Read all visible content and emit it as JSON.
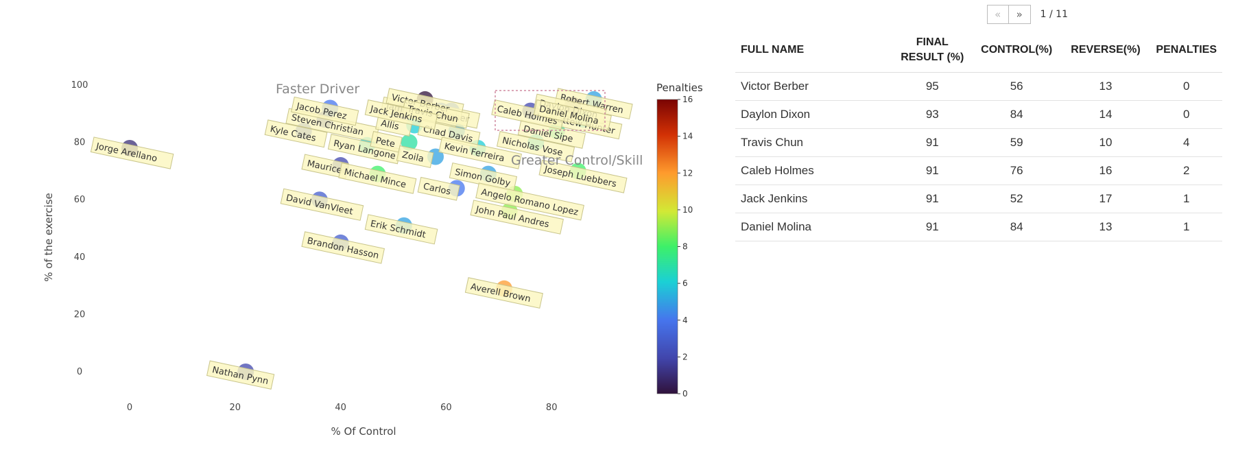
{
  "chart_data": {
    "type": "scatter",
    "xlabel": "% Of Control",
    "ylabel": "% of the exercise",
    "xlim": [
      -22,
      105
    ],
    "ylim": [
      -12,
      105
    ],
    "xticks": [
      0,
      20,
      40,
      60,
      80
    ],
    "yticks": [
      0,
      20,
      40,
      60,
      80,
      100
    ],
    "quadrant_labels": [
      "Faster Driver",
      "Greater Control/Skill"
    ],
    "colorbar": {
      "title": "Penalties",
      "min": 0,
      "max": 16,
      "ticks": [
        0,
        2,
        4,
        6,
        8,
        10,
        12,
        14,
        16
      ]
    },
    "points": [
      {
        "name": "Jorge Arellano",
        "x": 0,
        "y": 78,
        "penalties": 1
      },
      {
        "name": "Nathan Pynn",
        "x": 22,
        "y": 0,
        "penalties": 2
      },
      {
        "name": "Brandon Hasson",
        "x": 40,
        "y": 45,
        "penalties": 3
      },
      {
        "name": "Erik Schmidt",
        "x": 52,
        "y": 51,
        "penalties": 5
      },
      {
        "name": "Averell Brown",
        "x": 71,
        "y": 29,
        "penalties": 12
      },
      {
        "name": "David VanVleet",
        "x": 36,
        "y": 60,
        "penalties": 3
      },
      {
        "name": "Maurice",
        "x": 40,
        "y": 72,
        "penalties": 2
      },
      {
        "name": "Michael Mince",
        "x": 47,
        "y": 69,
        "penalties": 8
      },
      {
        "name": "Kyle Cates",
        "x": 33,
        "y": 84,
        "penalties": 3
      },
      {
        "name": "Steven Christian",
        "x": 37,
        "y": 88,
        "penalties": 2
      },
      {
        "name": "Jacob Perez",
        "x": 38,
        "y": 92,
        "penalties": 4
      },
      {
        "name": "Ryan Langone",
        "x": 45,
        "y": 79,
        "penalties": 6
      },
      {
        "name": "Jamie Schepis",
        "x": 55,
        "y": 92,
        "penalties": 5
      },
      {
        "name": "Christopher",
        "x": 61,
        "y": 91,
        "penalties": 4
      },
      {
        "name": "Allis",
        "x": 54,
        "y": 86,
        "penalties": 6
      },
      {
        "name": "Chad Davis",
        "x": 62,
        "y": 84,
        "penalties": 5
      },
      {
        "name": "Pete",
        "x": 53,
        "y": 80,
        "penalties": 7
      },
      {
        "name": "Kevin Ferreira",
        "x": 66,
        "y": 78,
        "penalties": 6
      },
      {
        "name": "Zoila",
        "x": 58,
        "y": 75,
        "penalties": 5
      },
      {
        "name": "Simon Golby",
        "x": 68,
        "y": 69,
        "penalties": 5
      },
      {
        "name": "Carlos",
        "x": 62,
        "y": 64,
        "penalties": 4
      },
      {
        "name": "Angelo Romano Lopez",
        "x": 73,
        "y": 62,
        "penalties": 9
      },
      {
        "name": "John Paul Andres",
        "x": 72,
        "y": 56,
        "penalties": 9
      },
      {
        "name": "Nicholas Vose",
        "x": 77,
        "y": 80,
        "penalties": 6
      },
      {
        "name": "Daniel Sipe",
        "x": 81,
        "y": 84,
        "penalties": 7
      },
      {
        "name": "Mattew Hunter",
        "x": 86,
        "y": 88,
        "penalties": 6
      },
      {
        "name": "Robert Warren",
        "x": 88,
        "y": 95,
        "penalties": 5
      },
      {
        "name": "Joseph Luebbers",
        "x": 85,
        "y": 70,
        "penalties": 8
      },
      {
        "name": "Victor Berber",
        "x": 56,
        "y": 95,
        "penalties": 0
      },
      {
        "name": "Daylon Dixon",
        "x": 84,
        "y": 93,
        "penalties": 0
      },
      {
        "name": "Travis Chun",
        "x": 59,
        "y": 91,
        "penalties": 4
      },
      {
        "name": "Caleb Holmes",
        "x": 76,
        "y": 91,
        "penalties": 2
      },
      {
        "name": "Jack Jenkins",
        "x": 52,
        "y": 91,
        "penalties": 1
      },
      {
        "name": "Daniel Molina",
        "x": 84,
        "y": 91,
        "penalties": 1
      }
    ]
  },
  "pager": {
    "prev": "«",
    "next": "»",
    "info": "1 / 11"
  },
  "table": {
    "headers": [
      "FULL NAME",
      "FINAL RESULT (%)",
      "CONTROL(%)",
      "REVERSE(%)",
      "PENALTIES"
    ],
    "rows": [
      [
        "Victor Berber",
        "95",
        "56",
        "13",
        "0"
      ],
      [
        "Daylon Dixon",
        "93",
        "84",
        "14",
        "0"
      ],
      [
        "Travis Chun",
        "91",
        "59",
        "10",
        "4"
      ],
      [
        "Caleb Holmes",
        "91",
        "76",
        "16",
        "2"
      ],
      [
        "Jack Jenkins",
        "91",
        "52",
        "17",
        "1"
      ],
      [
        "Daniel Molina",
        "91",
        "84",
        "13",
        "1"
      ]
    ]
  }
}
